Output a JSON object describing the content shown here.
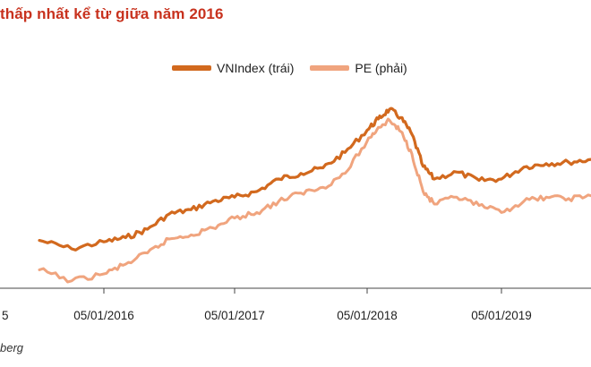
{
  "title": "thấp nhất kể từ giữa năm 2016",
  "source": "berg",
  "chart_data": {
    "type": "line",
    "xlabel": "",
    "ylabel": "",
    "grid": false,
    "legend_position": "top-center",
    "x_ticks": [
      "5",
      "05/01/2016",
      "05/01/2017",
      "05/01/2018",
      "05/01/2019"
    ],
    "x": [
      "2015-09",
      "2015-11",
      "2016-01",
      "2016-03",
      "2016-05",
      "2016-07",
      "2016-09",
      "2016-11",
      "2017-01",
      "2017-03",
      "2017-05",
      "2017-07",
      "2017-09",
      "2017-11",
      "2018-01",
      "2018-02",
      "2018-03",
      "2018-04",
      "2018-05",
      "2018-06",
      "2018-07",
      "2018-09",
      "2018-11",
      "2019-01",
      "2019-03",
      "2019-05",
      "2019-07",
      "2019-09",
      "2019-11"
    ],
    "series": [
      {
        "name": "VNIndex (trái)",
        "color": "#d2691e",
        "values": [
          230,
          218,
          228,
          234,
          246,
          268,
          274,
          286,
          292,
          300,
          318,
          326,
          334,
          356,
          388,
          404,
          418,
          406,
          382,
          336,
          318,
          328,
          316,
          318,
          335,
          340,
          342,
          346,
          344
        ]
      },
      {
        "name": "PE (phải)",
        "color": "#f0a47e",
        "values": [
          188,
          172,
          182,
          196,
          212,
          232,
          238,
          248,
          262,
          270,
          286,
          298,
          306,
          326,
          372,
          392,
          402,
          386,
          354,
          300,
          282,
          292,
          280,
          270,
          286,
          292,
          290,
          294,
          292
        ]
      }
    ]
  }
}
